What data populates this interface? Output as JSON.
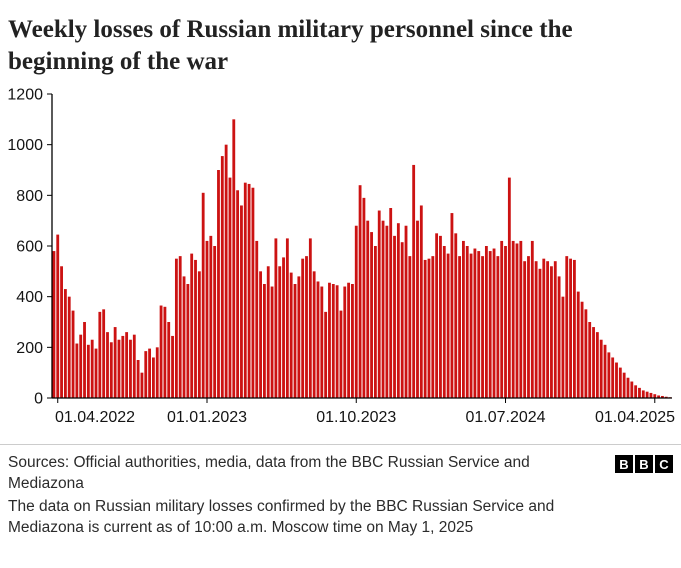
{
  "header": {
    "title": "Weekly losses of Russian military personnel since the beginning of the war"
  },
  "chart_data": {
    "type": "bar",
    "title": "Weekly losses of Russian military personnel since the beginning of the war",
    "xlabel": "",
    "ylabel": "",
    "ylim": [
      0,
      1200
    ],
    "y_ticks": [
      0,
      200,
      400,
      600,
      800,
      1000,
      1200
    ],
    "x_tick_labels": [
      "01.04.2022",
      "01.01.2023",
      "01.10.2023",
      "01.07.2024",
      "01.04.2025"
    ],
    "x_tick_weeks": [
      1,
      40,
      79,
      118,
      157
    ],
    "grid": false,
    "legend": false,
    "bar_color": "#cc1212",
    "axis_color": "#000000",
    "unit": "personnel lost per week",
    "values": [
      580,
      645,
      520,
      430,
      400,
      345,
      215,
      250,
      300,
      210,
      230,
      195,
      340,
      350,
      260,
      220,
      280,
      230,
      245,
      260,
      230,
      250,
      150,
      100,
      185,
      195,
      160,
      200,
      365,
      360,
      300,
      245,
      550,
      560,
      480,
      450,
      570,
      545,
      500,
      810,
      620,
      640,
      600,
      900,
      955,
      1000,
      870,
      1100,
      820,
      760,
      850,
      845,
      830,
      620,
      500,
      450,
      520,
      440,
      630,
      520,
      555,
      630,
      495,
      450,
      480,
      550,
      560,
      630,
      500,
      460,
      440,
      340,
      455,
      450,
      445,
      345,
      440,
      455,
      450,
      680,
      840,
      790,
      700,
      655,
      600,
      740,
      700,
      680,
      750,
      640,
      690,
      615,
      680,
      560,
      920,
      700,
      760,
      545,
      550,
      560,
      650,
      640,
      600,
      570,
      730,
      650,
      560,
      620,
      600,
      570,
      590,
      580,
      560,
      600,
      580,
      590,
      560,
      620,
      600,
      870,
      620,
      610,
      620,
      540,
      560,
      620,
      540,
      510,
      550,
      540,
      520,
      540,
      480,
      400,
      560,
      550,
      545,
      420,
      380,
      350,
      300,
      280,
      260,
      230,
      210,
      180,
      160,
      140,
      120,
      100,
      80,
      65,
      50,
      40,
      30,
      25,
      20,
      15,
      10,
      8,
      5,
      3
    ]
  },
  "footer": {
    "sources": "Sources: Official authorities, media, data from the BBC Russian Service and Mediazona",
    "note": "The data on Russian military losses confirmed by the BBC Russian Service and Mediazona is current as of 10:00 a.m. Moscow time on May 1, 2025",
    "logo_letters": [
      "B",
      "B",
      "C"
    ]
  }
}
